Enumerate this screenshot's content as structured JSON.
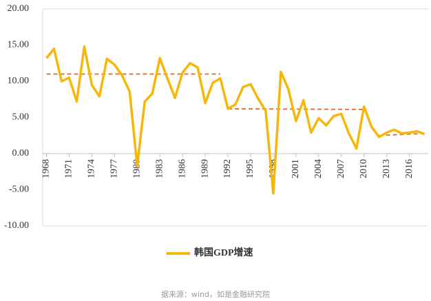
{
  "chart_data": {
    "type": "line",
    "x": [
      1968,
      1969,
      1970,
      1971,
      1972,
      1973,
      1974,
      1975,
      1976,
      1977,
      1978,
      1979,
      1980,
      1981,
      1982,
      1983,
      1984,
      1985,
      1986,
      1987,
      1988,
      1989,
      1990,
      1991,
      1992,
      1993,
      1994,
      1995,
      1996,
      1997,
      1998,
      1999,
      2000,
      2001,
      2002,
      2003,
      2004,
      2005,
      2006,
      2007,
      2008,
      2009,
      2010,
      2011,
      2012,
      2013,
      2014,
      2015,
      2016,
      2017,
      2018
    ],
    "series": [
      {
        "name": "韩国GDP增速",
        "color": "#f6b60a",
        "values": [
          13.2,
          14.5,
          10.0,
          10.5,
          7.2,
          14.8,
          9.5,
          7.9,
          13.1,
          12.3,
          10.8,
          8.6,
          -1.7,
          7.2,
          8.3,
          13.2,
          10.4,
          7.7,
          11.2,
          12.5,
          11.9,
          7.0,
          9.8,
          10.4,
          6.2,
          6.8,
          9.2,
          9.6,
          7.6,
          5.9,
          -5.5,
          11.3,
          8.9,
          4.5,
          7.4,
          2.9,
          4.9,
          3.9,
          5.2,
          5.5,
          2.8,
          0.7,
          6.5,
          3.7,
          2.3,
          2.9,
          3.3,
          2.8,
          2.9,
          3.1,
          2.7
        ]
      }
    ],
    "trend_lines": [
      {
        "x": [
          1968,
          1991
        ],
        "y": [
          11.0,
          11.0
        ],
        "color": "#e2793a"
      },
      {
        "x": [
          1992,
          2010
        ],
        "y": [
          6.2,
          6.1
        ],
        "color": "#e2793a"
      },
      {
        "x": [
          2012,
          2018
        ],
        "y": [
          2.5,
          2.8
        ],
        "color": "#e2793a"
      }
    ],
    "xlim": [
      1967.5,
      2018.5
    ],
    "xticks": [
      1968,
      1971,
      1974,
      1977,
      1980,
      1983,
      1986,
      1989,
      1992,
      1995,
      1998,
      2001,
      2004,
      2007,
      2010,
      2013,
      2016
    ],
    "ylim": [
      -10,
      20
    ],
    "yticks": [
      {
        "value": -10,
        "label": "-10.00"
      },
      {
        "value": -5,
        "label": "-5.00"
      },
      {
        "value": 0,
        "label": "0.00"
      },
      {
        "value": 5,
        "label": "5.00"
      },
      {
        "value": 10,
        "label": "10.00"
      },
      {
        "value": 15,
        "label": "15.00"
      },
      {
        "value": 20,
        "label": "20.00"
      }
    ],
    "grid": false,
    "legend": "bottom",
    "source": "据来源：wind，如是金融研究院"
  }
}
